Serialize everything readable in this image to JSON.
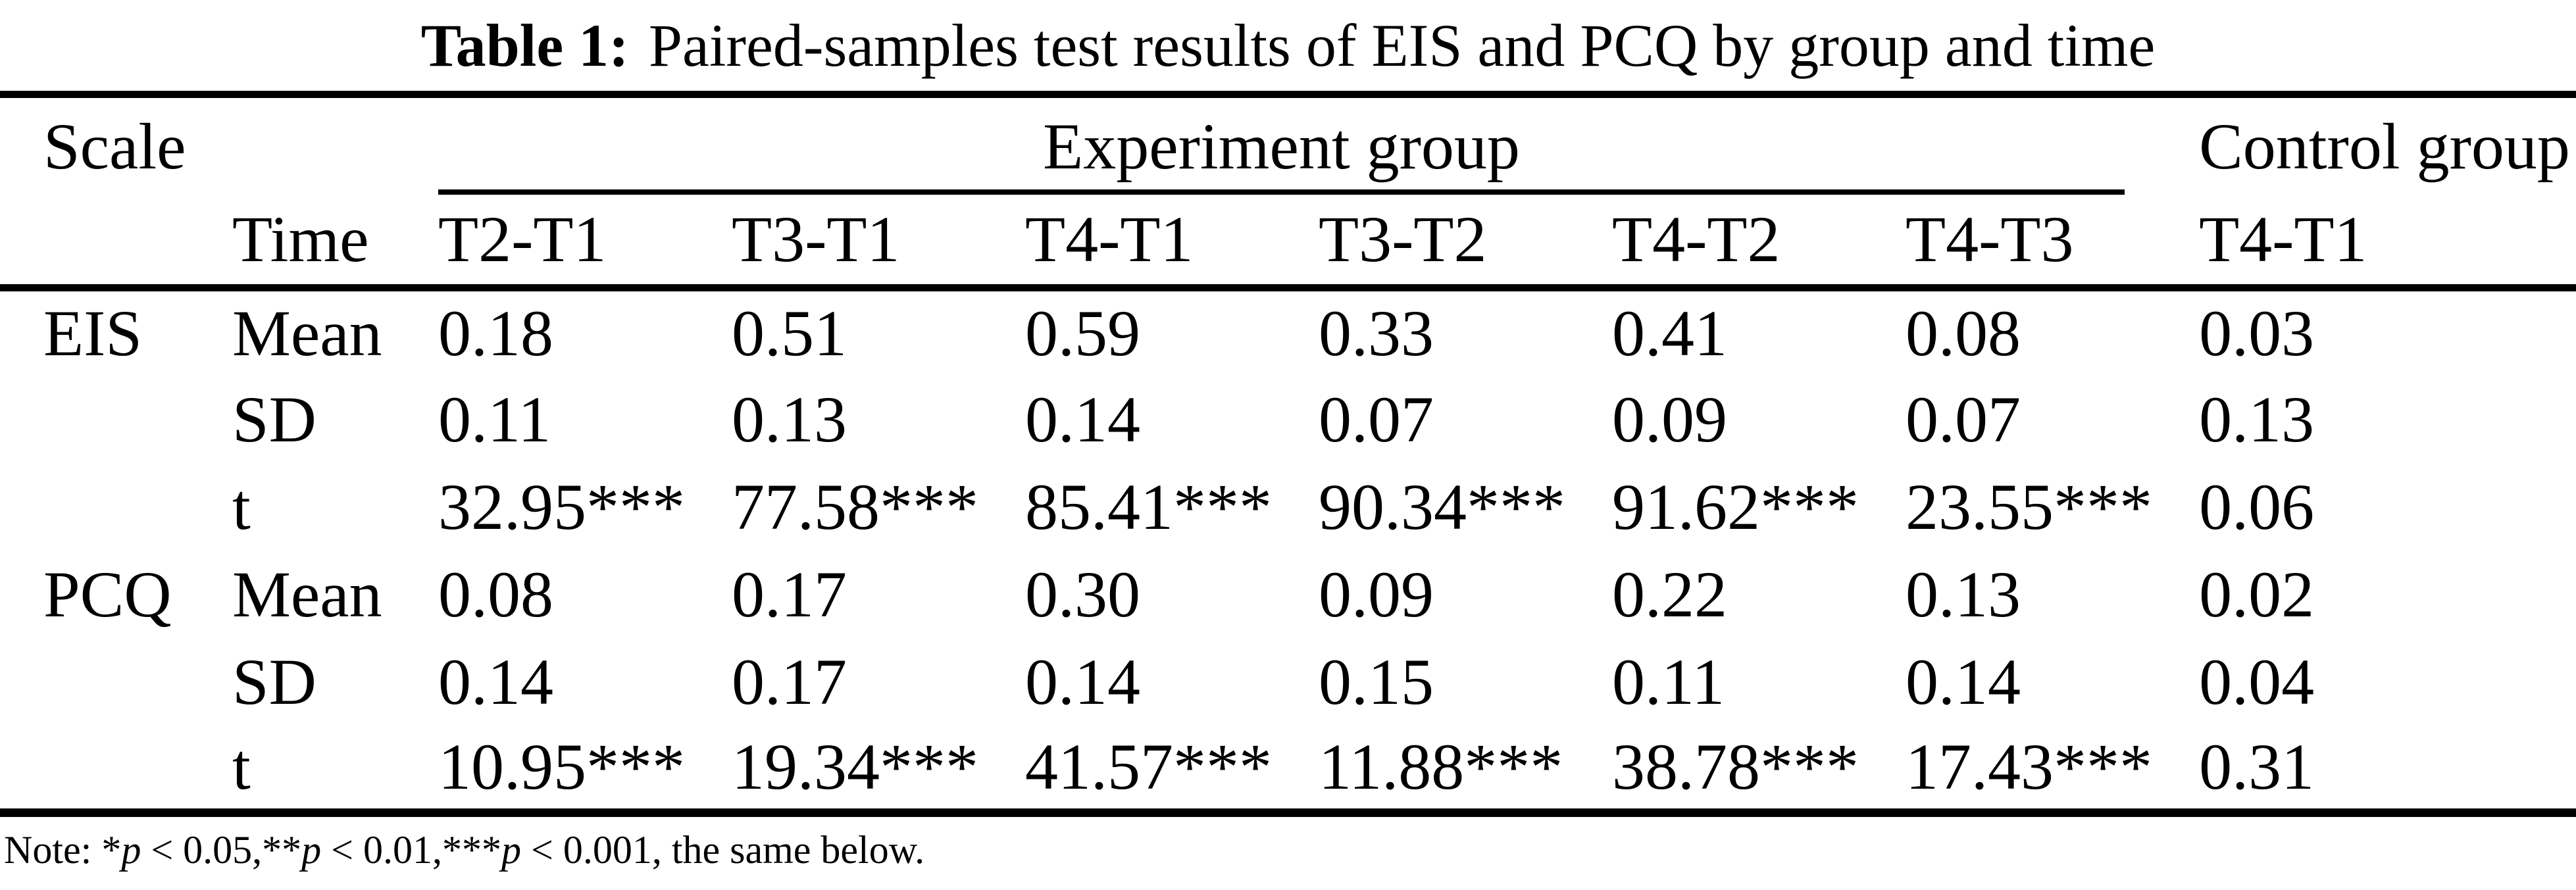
{
  "caption": {
    "label": "Table 1:",
    "text": "Paired-samples test results of EIS and PCQ by group and time"
  },
  "table": {
    "header": {
      "scale": "Scale",
      "time": "Time",
      "experiment_group": "Experiment group",
      "control_group": "Control group",
      "experiment_cols": [
        "T2-T1",
        "T3-T1",
        "T4-T1",
        "T3-T2",
        "T4-T2",
        "T4-T3"
      ],
      "control_col": "T4-T1"
    },
    "rows": [
      {
        "scale": "EIS",
        "stat": "Mean",
        "values": [
          "0.18",
          "0.51",
          "0.59",
          "0.33",
          "0.41",
          "0.08"
        ],
        "control": "0.03"
      },
      {
        "scale": "",
        "stat": "SD",
        "values": [
          "0.11",
          "0.13",
          "0.14",
          "0.07",
          "0.09",
          "0.07"
        ],
        "control": "0.13"
      },
      {
        "scale": "",
        "stat": "t",
        "values": [
          "32.95***",
          "77.58***",
          "85.41***",
          "90.34***",
          "91.62***",
          "23.55***"
        ],
        "control": "0.06"
      },
      {
        "scale": "PCQ",
        "stat": "Mean",
        "values": [
          "0.08",
          "0.17",
          "0.30",
          "0.09",
          "0.22",
          "0.13"
        ],
        "control": "0.02"
      },
      {
        "scale": "",
        "stat": "SD",
        "values": [
          "0.14",
          "0.17",
          "0.14",
          "0.15",
          "0.11",
          "0.14"
        ],
        "control": "0.04"
      },
      {
        "scale": "",
        "stat": "t",
        "values": [
          "10.95***",
          "19.34***",
          "41.57***",
          "11.88***",
          "38.78***",
          "17.43***"
        ],
        "control": "0.31"
      }
    ]
  },
  "note": {
    "segments": [
      {
        "text": "Note: ",
        "italic": false
      },
      {
        "text": "*",
        "italic": false
      },
      {
        "text": "p",
        "italic": true
      },
      {
        "text": " < 0.05,**",
        "italic": false
      },
      {
        "text": "p",
        "italic": true
      },
      {
        "text": " < 0.01,***",
        "italic": false
      },
      {
        "text": "p",
        "italic": true
      },
      {
        "text": " < 0.001, the same below.",
        "italic": false
      }
    ]
  },
  "colors": {
    "text": "#000000",
    "background": "#ffffff",
    "rule": "#000000"
  }
}
